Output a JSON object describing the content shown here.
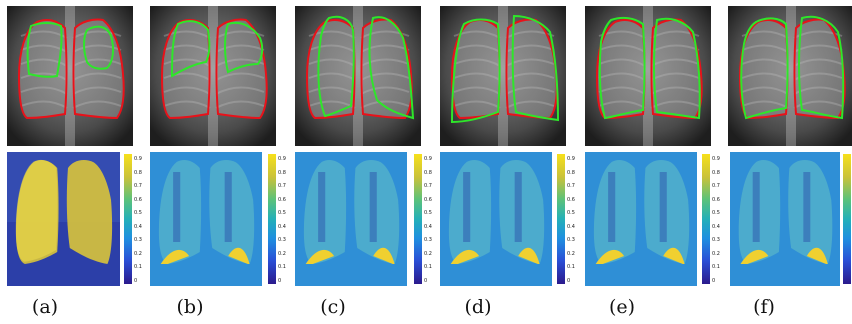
{
  "panels": [
    {
      "caption": "(a)"
    },
    {
      "caption": "(b)"
    },
    {
      "caption": "(c)"
    },
    {
      "caption": "(d)"
    },
    {
      "caption": "(e)"
    },
    {
      "caption": "(f)"
    }
  ],
  "colorbar": {
    "ticks": [
      "0.9",
      "0.8",
      "0.7",
      "0.6",
      "0.5",
      "0.4",
      "0.3",
      "0.2",
      "0.1",
      "0"
    ]
  },
  "colors": {
    "ground_truth_contour": "#e8121a",
    "prediction_contour": "#2ee62a",
    "background": "#ffffff"
  }
}
